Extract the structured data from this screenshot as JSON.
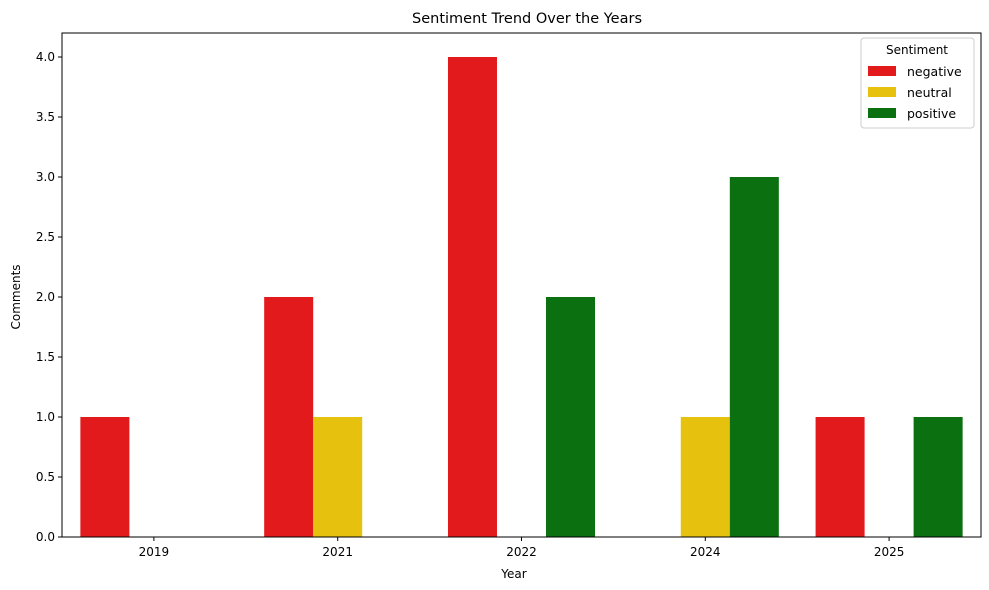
{
  "chart_data": {
    "type": "bar",
    "title": "Sentiment Trend Over the Years",
    "xlabel": "Year",
    "ylabel": "Comments",
    "categories": [
      "2019",
      "2021",
      "2022",
      "2024",
      "2025"
    ],
    "series": [
      {
        "name": "negative",
        "color": "#e31a1c",
        "values": [
          1,
          2,
          4,
          0,
          1
        ]
      },
      {
        "name": "neutral",
        "color": "#e6c20f",
        "values": [
          0,
          1,
          0,
          1,
          0
        ]
      },
      {
        "name": "positive",
        "color": "#0a7010",
        "values": [
          0,
          0,
          2,
          3,
          1
        ]
      }
    ],
    "ylim": [
      0,
      4.2
    ],
    "yticks": [
      "0.0",
      "0.5",
      "1.0",
      "1.5",
      "2.0",
      "2.5",
      "3.0",
      "3.5",
      "4.0"
    ],
    "legend": {
      "title": "Sentiment",
      "placement": "top-right"
    },
    "grid": false
  }
}
